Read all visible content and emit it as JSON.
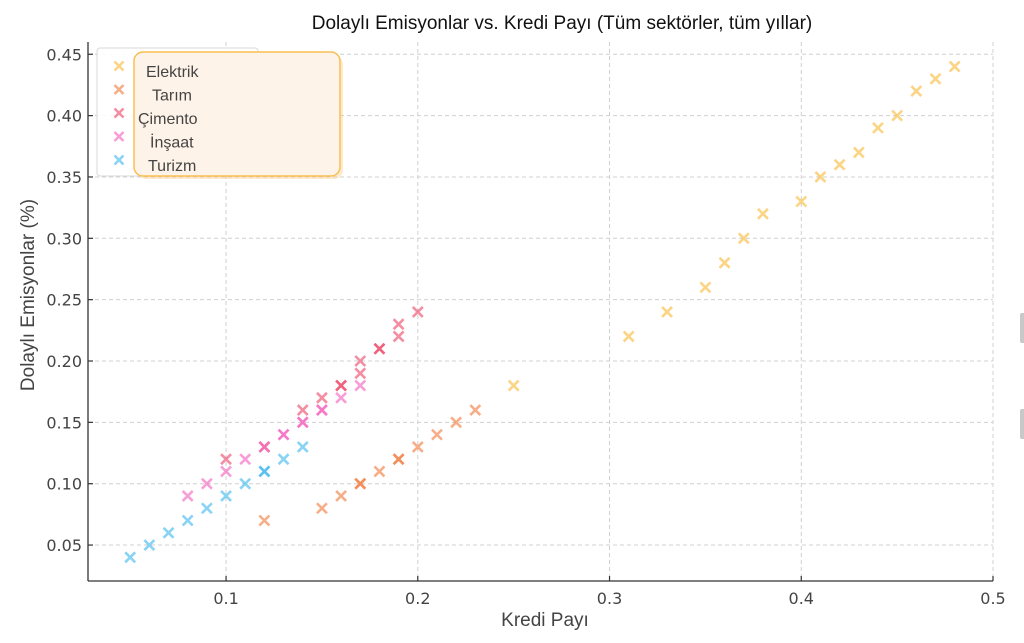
{
  "chart_data": {
    "type": "scatter",
    "title": "Dolaylı Emisyonlar vs. Kredi Payı (Tüm sektörler, tüm yıllar)",
    "xlabel": "Kredi Payı",
    "ylabel": "Dolaylı Emisyonlar (%)",
    "xlim": [
      0.028,
      0.5
    ],
    "ylim": [
      0.0207,
      0.46
    ],
    "xticks": [
      0.1,
      0.2,
      0.3,
      0.4,
      0.5
    ],
    "xtick_labels": [
      "0.1",
      "0.2",
      "0.3",
      "0.4",
      "0.5"
    ],
    "yticks": [
      0.05,
      0.1,
      0.15,
      0.2,
      0.25,
      0.3,
      0.35,
      0.4,
      0.45
    ],
    "ytick_labels": [
      "0.05",
      "0.10",
      "0.15",
      "0.20",
      "0.25",
      "0.30",
      "0.35",
      "0.40",
      "0.45"
    ],
    "grid": true,
    "marker": "x",
    "legend_position": "top-left",
    "series": [
      {
        "name": "Elektrik",
        "color": "#f9b934",
        "points": [
          [
            0.25,
            0.18
          ],
          [
            0.31,
            0.22
          ],
          [
            0.33,
            0.24
          ],
          [
            0.35,
            0.26
          ],
          [
            0.36,
            0.28
          ],
          [
            0.37,
            0.3
          ],
          [
            0.38,
            0.32
          ],
          [
            0.4,
            0.33
          ],
          [
            0.41,
            0.35
          ],
          [
            0.42,
            0.36
          ],
          [
            0.43,
            0.37
          ],
          [
            0.44,
            0.39
          ],
          [
            0.45,
            0.4
          ],
          [
            0.46,
            0.42
          ],
          [
            0.47,
            0.43
          ],
          [
            0.48,
            0.44
          ]
        ]
      },
      {
        "name": "Tarım",
        "color": "#f27a3a",
        "points": [
          [
            0.12,
            0.07
          ],
          [
            0.15,
            0.08
          ],
          [
            0.16,
            0.09
          ],
          [
            0.17,
            0.1
          ],
          [
            0.17,
            0.1
          ],
          [
            0.18,
            0.11
          ],
          [
            0.19,
            0.12
          ],
          [
            0.19,
            0.12
          ],
          [
            0.2,
            0.13
          ],
          [
            0.21,
            0.14
          ],
          [
            0.22,
            0.15
          ],
          [
            0.23,
            0.16
          ]
        ]
      },
      {
        "name": "Çimento",
        "color": "#ee4466",
        "points": [
          [
            0.1,
            0.12
          ],
          [
            0.12,
            0.13
          ],
          [
            0.14,
            0.16
          ],
          [
            0.15,
            0.17
          ],
          [
            0.16,
            0.18
          ],
          [
            0.16,
            0.18
          ],
          [
            0.17,
            0.2
          ],
          [
            0.17,
            0.19
          ],
          [
            0.18,
            0.21
          ],
          [
            0.18,
            0.21
          ],
          [
            0.19,
            0.23
          ],
          [
            0.19,
            0.22
          ],
          [
            0.2,
            0.24
          ]
        ]
      },
      {
        "name": "İnşaat",
        "color": "#f55fbe",
        "points": [
          [
            0.08,
            0.09
          ],
          [
            0.09,
            0.1
          ],
          [
            0.1,
            0.11
          ],
          [
            0.11,
            0.12
          ],
          [
            0.12,
            0.13
          ],
          [
            0.13,
            0.14
          ],
          [
            0.13,
            0.14
          ],
          [
            0.14,
            0.15
          ],
          [
            0.14,
            0.15
          ],
          [
            0.15,
            0.16
          ],
          [
            0.15,
            0.16
          ],
          [
            0.16,
            0.17
          ],
          [
            0.17,
            0.18
          ]
        ]
      },
      {
        "name": "Turizm",
        "color": "#3bb6f0",
        "points": [
          [
            0.05,
            0.04
          ],
          [
            0.06,
            0.05
          ],
          [
            0.07,
            0.06
          ],
          [
            0.08,
            0.07
          ],
          [
            0.09,
            0.08
          ],
          [
            0.1,
            0.09
          ],
          [
            0.11,
            0.1
          ],
          [
            0.12,
            0.11
          ],
          [
            0.12,
            0.11
          ],
          [
            0.13,
            0.12
          ],
          [
            0.14,
            0.13
          ]
        ]
      }
    ]
  }
}
